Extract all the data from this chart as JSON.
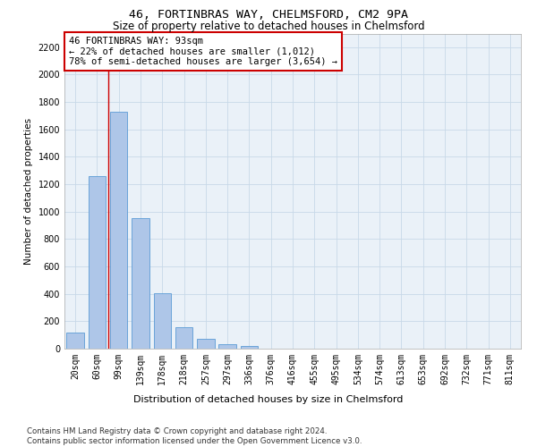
{
  "title1": "46, FORTINBRAS WAY, CHELMSFORD, CM2 9PA",
  "title2": "Size of property relative to detached houses in Chelmsford",
  "xlabel": "Distribution of detached houses by size in Chelmsford",
  "ylabel": "Number of detached properties",
  "bar_labels": [
    "20sqm",
    "60sqm",
    "99sqm",
    "139sqm",
    "178sqm",
    "218sqm",
    "257sqm",
    "297sqm",
    "336sqm",
    "376sqm",
    "416sqm",
    "455sqm",
    "495sqm",
    "534sqm",
    "574sqm",
    "613sqm",
    "653sqm",
    "692sqm",
    "732sqm",
    "771sqm",
    "811sqm"
  ],
  "bar_values": [
    120,
    1260,
    1730,
    950,
    405,
    155,
    75,
    35,
    20,
    0,
    0,
    0,
    0,
    0,
    0,
    0,
    0,
    0,
    0,
    0,
    0
  ],
  "bar_color": "#aec6e8",
  "bar_edge_color": "#5b9bd5",
  "vline_color": "#cc0000",
  "annotation_line1": "46 FORTINBRAS WAY: 93sqm",
  "annotation_line2": "← 22% of detached houses are smaller (1,012)",
  "annotation_line3": "78% of semi-detached houses are larger (3,654) →",
  "annotation_box_edgecolor": "#cc0000",
  "annotation_box_facecolor": "#ffffff",
  "ylim": [
    0,
    2300
  ],
  "yticks": [
    0,
    200,
    400,
    600,
    800,
    1000,
    1200,
    1400,
    1600,
    1800,
    2000,
    2200
  ],
  "grid_color": "#c8d8e8",
  "background_color": "#eaf1f8",
  "footnote": "Contains HM Land Registry data © Crown copyright and database right 2024.\nContains public sector information licensed under the Open Government Licence v3.0.",
  "title1_fontsize": 9.5,
  "title2_fontsize": 8.5,
  "xlabel_fontsize": 8,
  "ylabel_fontsize": 7.5,
  "tick_fontsize": 7,
  "annotation_fontsize": 7.5,
  "footnote_fontsize": 6.2,
  "vline_xindex": 1.5
}
